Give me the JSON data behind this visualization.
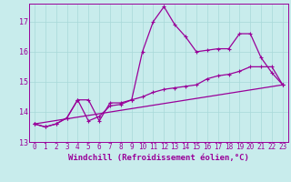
{
  "xlabel": "Windchill (Refroidissement éolien,°C)",
  "bg_color": "#c8ecec",
  "grid_color": "#a8d8d8",
  "line_color": "#990099",
  "xlim": [
    -0.5,
    23.5
  ],
  "ylim": [
    13.0,
    17.6
  ],
  "yticks": [
    13,
    14,
    15,
    16,
    17
  ],
  "xticks": [
    0,
    1,
    2,
    3,
    4,
    5,
    6,
    7,
    8,
    9,
    10,
    11,
    12,
    13,
    14,
    15,
    16,
    17,
    18,
    19,
    20,
    21,
    22,
    23
  ],
  "series1_x": [
    0,
    1,
    2,
    3,
    4,
    5,
    6,
    7,
    8,
    9,
    10,
    11,
    12,
    13,
    14,
    15,
    16,
    17,
    18,
    19,
    20,
    21,
    22,
    23
  ],
  "series1_y": [
    13.6,
    13.5,
    13.6,
    13.8,
    14.4,
    14.4,
    13.7,
    14.3,
    14.3,
    14.4,
    16.0,
    17.0,
    17.5,
    16.9,
    16.5,
    16.0,
    16.05,
    16.1,
    16.1,
    16.6,
    16.6,
    15.8,
    15.3,
    14.9
  ],
  "series2_x": [
    0,
    1,
    2,
    3,
    4,
    5,
    6,
    7,
    8,
    9,
    10,
    11,
    12,
    13,
    14,
    15,
    16,
    17,
    18,
    19,
    20,
    21,
    22,
    23
  ],
  "series2_y": [
    13.6,
    13.5,
    13.6,
    13.8,
    14.4,
    13.7,
    13.85,
    14.2,
    14.25,
    14.4,
    14.5,
    14.65,
    14.75,
    14.8,
    14.85,
    14.9,
    15.1,
    15.2,
    15.25,
    15.35,
    15.5,
    15.5,
    15.5,
    14.9
  ],
  "series3_x": [
    0,
    23
  ],
  "series3_y": [
    13.6,
    14.9
  ],
  "tick_fontsize": 5.5,
  "xlabel_fontsize": 6.5
}
